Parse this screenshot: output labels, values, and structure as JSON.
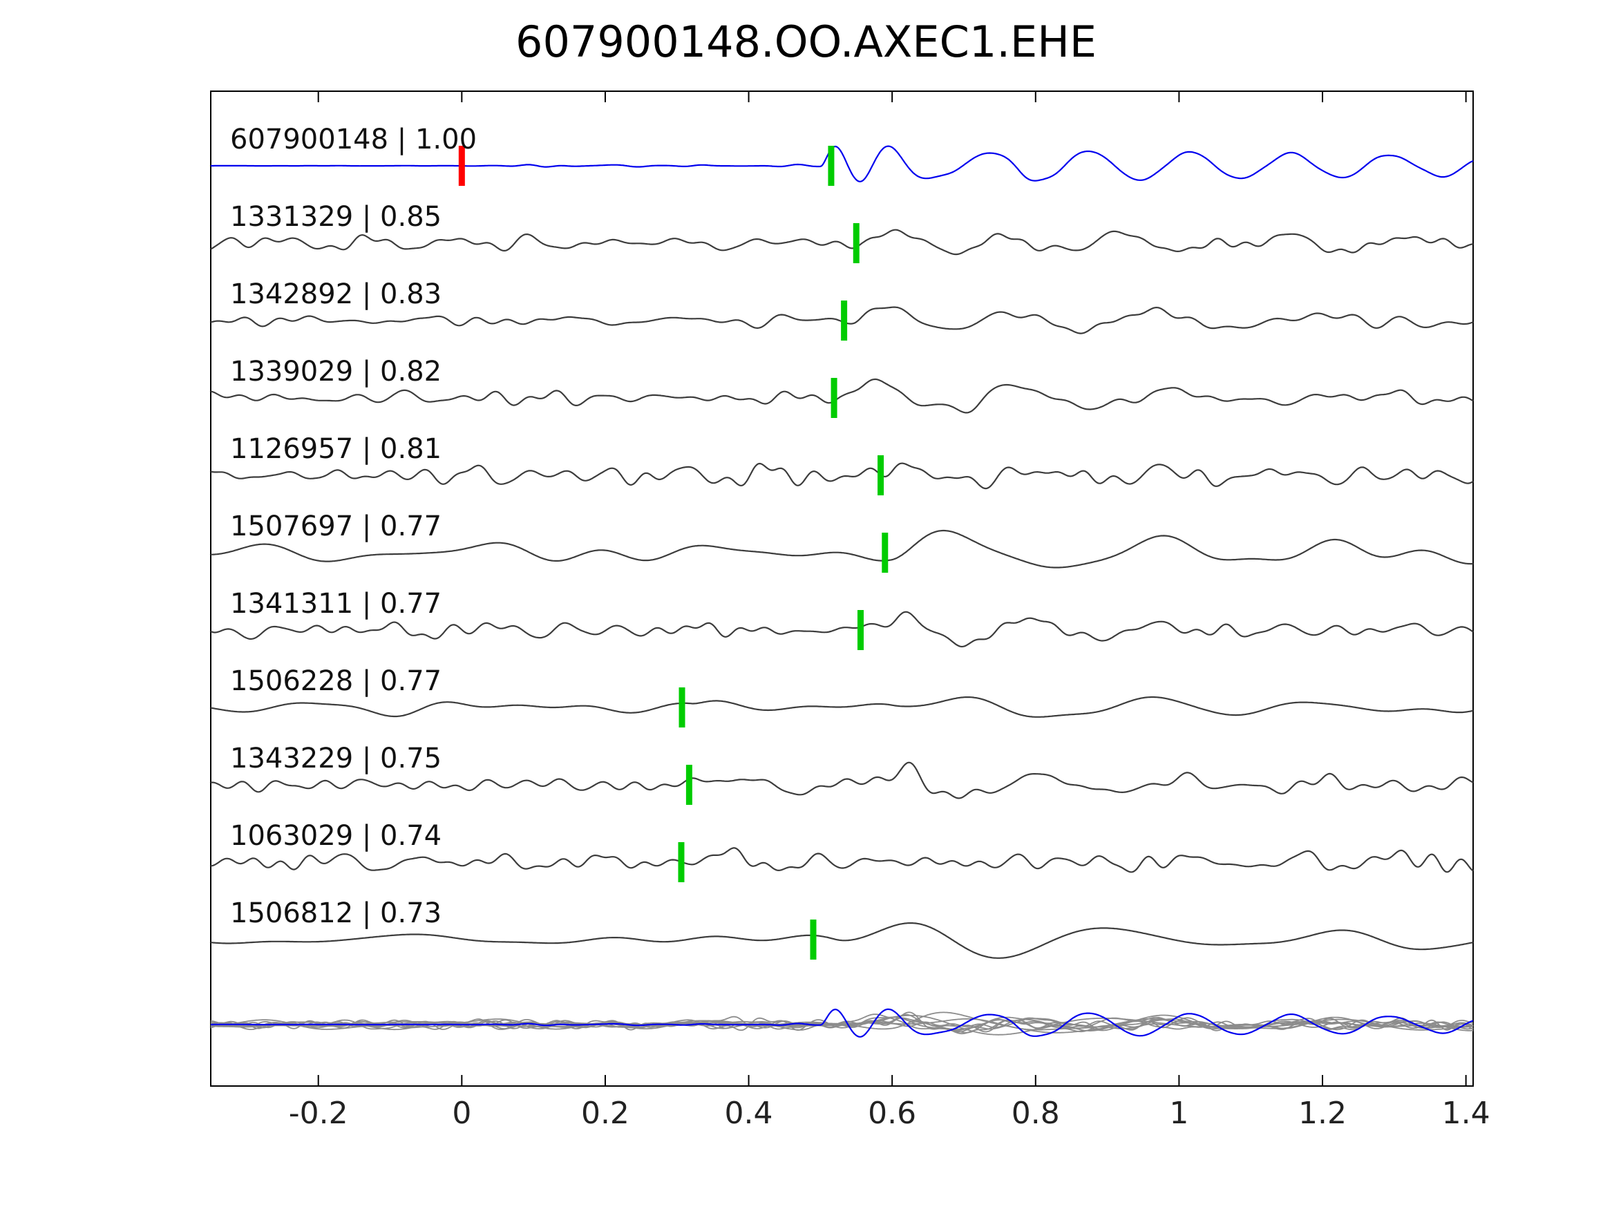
{
  "chart_data": {
    "type": "line",
    "title": "607900148.OO.AXEC1.EHE",
    "xlabel": "",
    "ylabel": "",
    "grid": false,
    "legend": "none",
    "xlim": [
      -0.35,
      1.41
    ],
    "xticks": [
      -0.2,
      0,
      0.2,
      0.4,
      0.6,
      0.8,
      1,
      1.2,
      1.4
    ],
    "xtick_labels": [
      "-0.2",
      "0",
      "0.2",
      "0.4",
      "0.6",
      "0.8",
      "1",
      "1.2",
      "1.4"
    ],
    "description": "Stacked normalized seismic waveform traces labeled 'event id | cross-correlation'. Top blue trace is the template (cc 1.00) with a red bar at time 0 and a green pick bar; gray detection traces each have a green pick bar. Bottom row overlays all gray detections with the blue template.",
    "colors": {
      "template": "#0000ee",
      "detection": "#3c3c3c",
      "overlay_gray": "#8c8c8c",
      "pick": "#00cc00",
      "template_time": "#ff0000",
      "frame": "#000000"
    },
    "overlay": {
      "gray_scale": 0.55,
      "template_scale": 0.78
    },
    "traces": [
      {
        "id": "607900148",
        "cc": 1.0,
        "label": "607900148 | 1.00",
        "kind": "template",
        "pick": 0.515,
        "markers": [
          {
            "t": 0.0,
            "type": "template-time"
          },
          {
            "t": 0.515,
            "type": "pick"
          }
        ],
        "synth": {
          "seed": 11,
          "noise_amp": 2.5,
          "fmin": 6,
          "fmax": 30,
          "noise_gate": 0.0,
          "events": [
            {
              "t0": 0.5,
              "amp": 50,
              "f": 13,
              "rise": 0.015,
              "decay": 0.07
            },
            {
              "t0": 0.555,
              "amp": 26,
              "f": 7,
              "rise": 0.04,
              "decay": 0.45
            },
            {
              "t0": 0.7,
              "amp": 13,
              "f": 7.2,
              "rise": 0.15,
              "decay": 9
            }
          ]
        }
      },
      {
        "id": "1331329",
        "cc": 0.85,
        "label": "1331329 | 0.85",
        "kind": "detection",
        "pick": 0.55,
        "markers": [
          {
            "t": 0.55,
            "type": "pick"
          }
        ],
        "synth": {
          "seed": 22,
          "noise_amp": 15,
          "fmin": 4,
          "fmax": 32,
          "events": [
            {
              "t0": 0.56,
              "amp": 30,
              "f": 6,
              "rise": 0.03,
              "decay": 0.22
            },
            {
              "t0": 0.62,
              "amp": 11,
              "f": 4.5,
              "rise": 0.1,
              "decay": 2
            }
          ]
        }
      },
      {
        "id": "1342892",
        "cc": 0.83,
        "label": "1342892 | 0.83",
        "kind": "detection",
        "pick": 0.533,
        "markers": [
          {
            "t": 0.533,
            "type": "pick"
          }
        ],
        "synth": {
          "seed": 33,
          "noise_amp": 11,
          "fmin": 4,
          "fmax": 28,
          "events": [
            {
              "t0": 0.545,
              "amp": 34,
              "f": 5.5,
              "rise": 0.025,
              "decay": 0.22
            },
            {
              "t0": 0.65,
              "amp": 10,
              "f": 4,
              "rise": 0.1,
              "decay": 2
            }
          ]
        }
      },
      {
        "id": "1339029",
        "cc": 0.82,
        "label": "1339029 | 0.82",
        "kind": "detection",
        "pick": 0.519,
        "markers": [
          {
            "t": 0.519,
            "type": "pick"
          }
        ],
        "synth": {
          "seed": 44,
          "noise_amp": 11,
          "fmin": 3,
          "fmax": 26,
          "events": [
            {
              "t0": 0.53,
              "amp": 36,
              "f": 5,
              "rise": 0.03,
              "decay": 0.25
            },
            {
              "t0": 0.7,
              "amp": 9,
              "f": 4,
              "rise": 0.1,
              "decay": 2
            }
          ]
        }
      },
      {
        "id": "1126957",
        "cc": 0.81,
        "label": "1126957 | 0.81",
        "kind": "detection",
        "pick": 0.584,
        "markers": [
          {
            "t": 0.584,
            "type": "pick"
          }
        ],
        "synth": {
          "seed": 55,
          "noise_amp": 17,
          "fmin": 5,
          "fmax": 34,
          "events": [
            {
              "t0": 0.59,
              "amp": 24,
              "f": 6,
              "rise": 0.03,
              "decay": 0.3
            }
          ]
        }
      },
      {
        "id": "1507697",
        "cc": 0.77,
        "label": "1507697 | 0.77",
        "kind": "detection",
        "pick": 0.59,
        "markers": [
          {
            "t": 0.59,
            "type": "pick"
          }
        ],
        "synth": {
          "seed": 66,
          "noise_amp": 16,
          "fmin": 2,
          "fmax": 9,
          "events": [
            {
              "t0": 0.6,
              "amp": 30,
              "f": 3.6,
              "rise": 0.05,
              "decay": 0.5
            }
          ]
        }
      },
      {
        "id": "1341311",
        "cc": 0.77,
        "label": "1341311 | 0.77",
        "kind": "detection",
        "pick": 0.556,
        "markers": [
          {
            "t": 0.556,
            "type": "pick"
          }
        ],
        "synth": {
          "seed": 77,
          "noise_amp": 14,
          "fmin": 4,
          "fmax": 30,
          "events": [
            {
              "t0": 0.57,
              "amp": 30,
              "f": 5.5,
              "rise": 0.03,
              "decay": 0.3
            }
          ]
        }
      },
      {
        "id": "1506228",
        "cc": 0.77,
        "label": "1506228 | 0.77",
        "kind": "detection",
        "pick": 0.307,
        "markers": [
          {
            "t": 0.307,
            "type": "pick"
          }
        ],
        "synth": {
          "seed": 88,
          "noise_amp": 13,
          "fmin": 2,
          "fmax": 10,
          "events": [
            {
              "t0": 0.32,
              "amp": 22,
              "f": 5,
              "rise": 0.025,
              "decay": 0.12
            },
            {
              "t0": 0.6,
              "amp": 26,
              "f": 3.5,
              "rise": 0.05,
              "decay": 0.45
            }
          ]
        }
      },
      {
        "id": "1343229",
        "cc": 0.75,
        "label": "1343229 | 0.75",
        "kind": "detection",
        "pick": 0.317,
        "markers": [
          {
            "t": 0.317,
            "type": "pick"
          }
        ],
        "synth": {
          "seed": 99,
          "noise_amp": 17,
          "fmin": 4,
          "fmax": 28,
          "events": [
            {
              "t0": 0.33,
              "amp": 16,
              "f": 5,
              "rise": 0.03,
              "decay": 0.15
            },
            {
              "t0": 0.56,
              "amp": 22,
              "f": 5,
              "rise": 0.03,
              "decay": 0.35
            }
          ]
        }
      },
      {
        "id": "1063029",
        "cc": 0.74,
        "label": "1063029 | 0.74",
        "kind": "detection",
        "pick": 0.306,
        "markers": [
          {
            "t": 0.306,
            "type": "pick"
          }
        ],
        "synth": {
          "seed": 110,
          "noise_amp": 16,
          "fmin": 4,
          "fmax": 30,
          "events": [
            {
              "t0": 0.32,
              "amp": 22,
              "f": 6,
              "rise": 0.02,
              "decay": 0.12
            },
            {
              "t0": 1.28,
              "amp": 14,
              "f": 5,
              "rise": 0.05,
              "decay": 0.3
            }
          ]
        }
      },
      {
        "id": "1506812",
        "cc": 0.73,
        "label": "1506812 | 0.73",
        "kind": "detection",
        "pick": 0.49,
        "markers": [
          {
            "t": 0.49,
            "type": "pick"
          }
        ],
        "synth": {
          "seed": 121,
          "noise_amp": 9,
          "fmin": 2,
          "fmax": 8,
          "events": [
            {
              "t0": 0.52,
              "amp": 34,
              "f": 3.2,
              "rise": 0.05,
              "decay": 0.45
            },
            {
              "t0": 1.12,
              "amp": 10,
              "f": 3,
              "rise": 0.1,
              "decay": 0.5
            }
          ]
        }
      }
    ]
  }
}
